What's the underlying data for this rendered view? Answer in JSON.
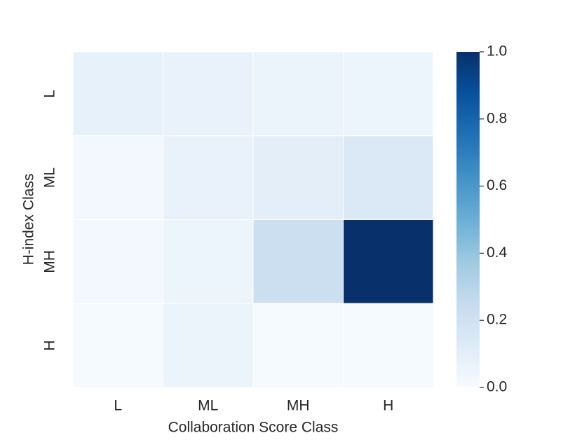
{
  "chart_data": {
    "type": "heatmap",
    "xlabel": "Collaboration Score Class",
    "ylabel": "H-index Class",
    "x_categories": [
      "L",
      "ML",
      "MH",
      "H"
    ],
    "y_categories": [
      "L",
      "ML",
      "MH",
      "H"
    ],
    "values": [
      [
        0.08,
        0.07,
        0.06,
        0.05
      ],
      [
        0.02,
        0.07,
        0.1,
        0.14
      ],
      [
        0.02,
        0.05,
        0.22,
        1.0
      ],
      [
        0.01,
        0.06,
        0.01,
        0.01
      ]
    ],
    "colormap": "Blues",
    "clim": [
      0,
      1
    ],
    "cticks": [
      {
        "value": 0,
        "label": "0.0"
      },
      0.2,
      0.4,
      0.6,
      0.8,
      {
        "value": 1,
        "label": "1.0"
      }
    ]
  }
}
